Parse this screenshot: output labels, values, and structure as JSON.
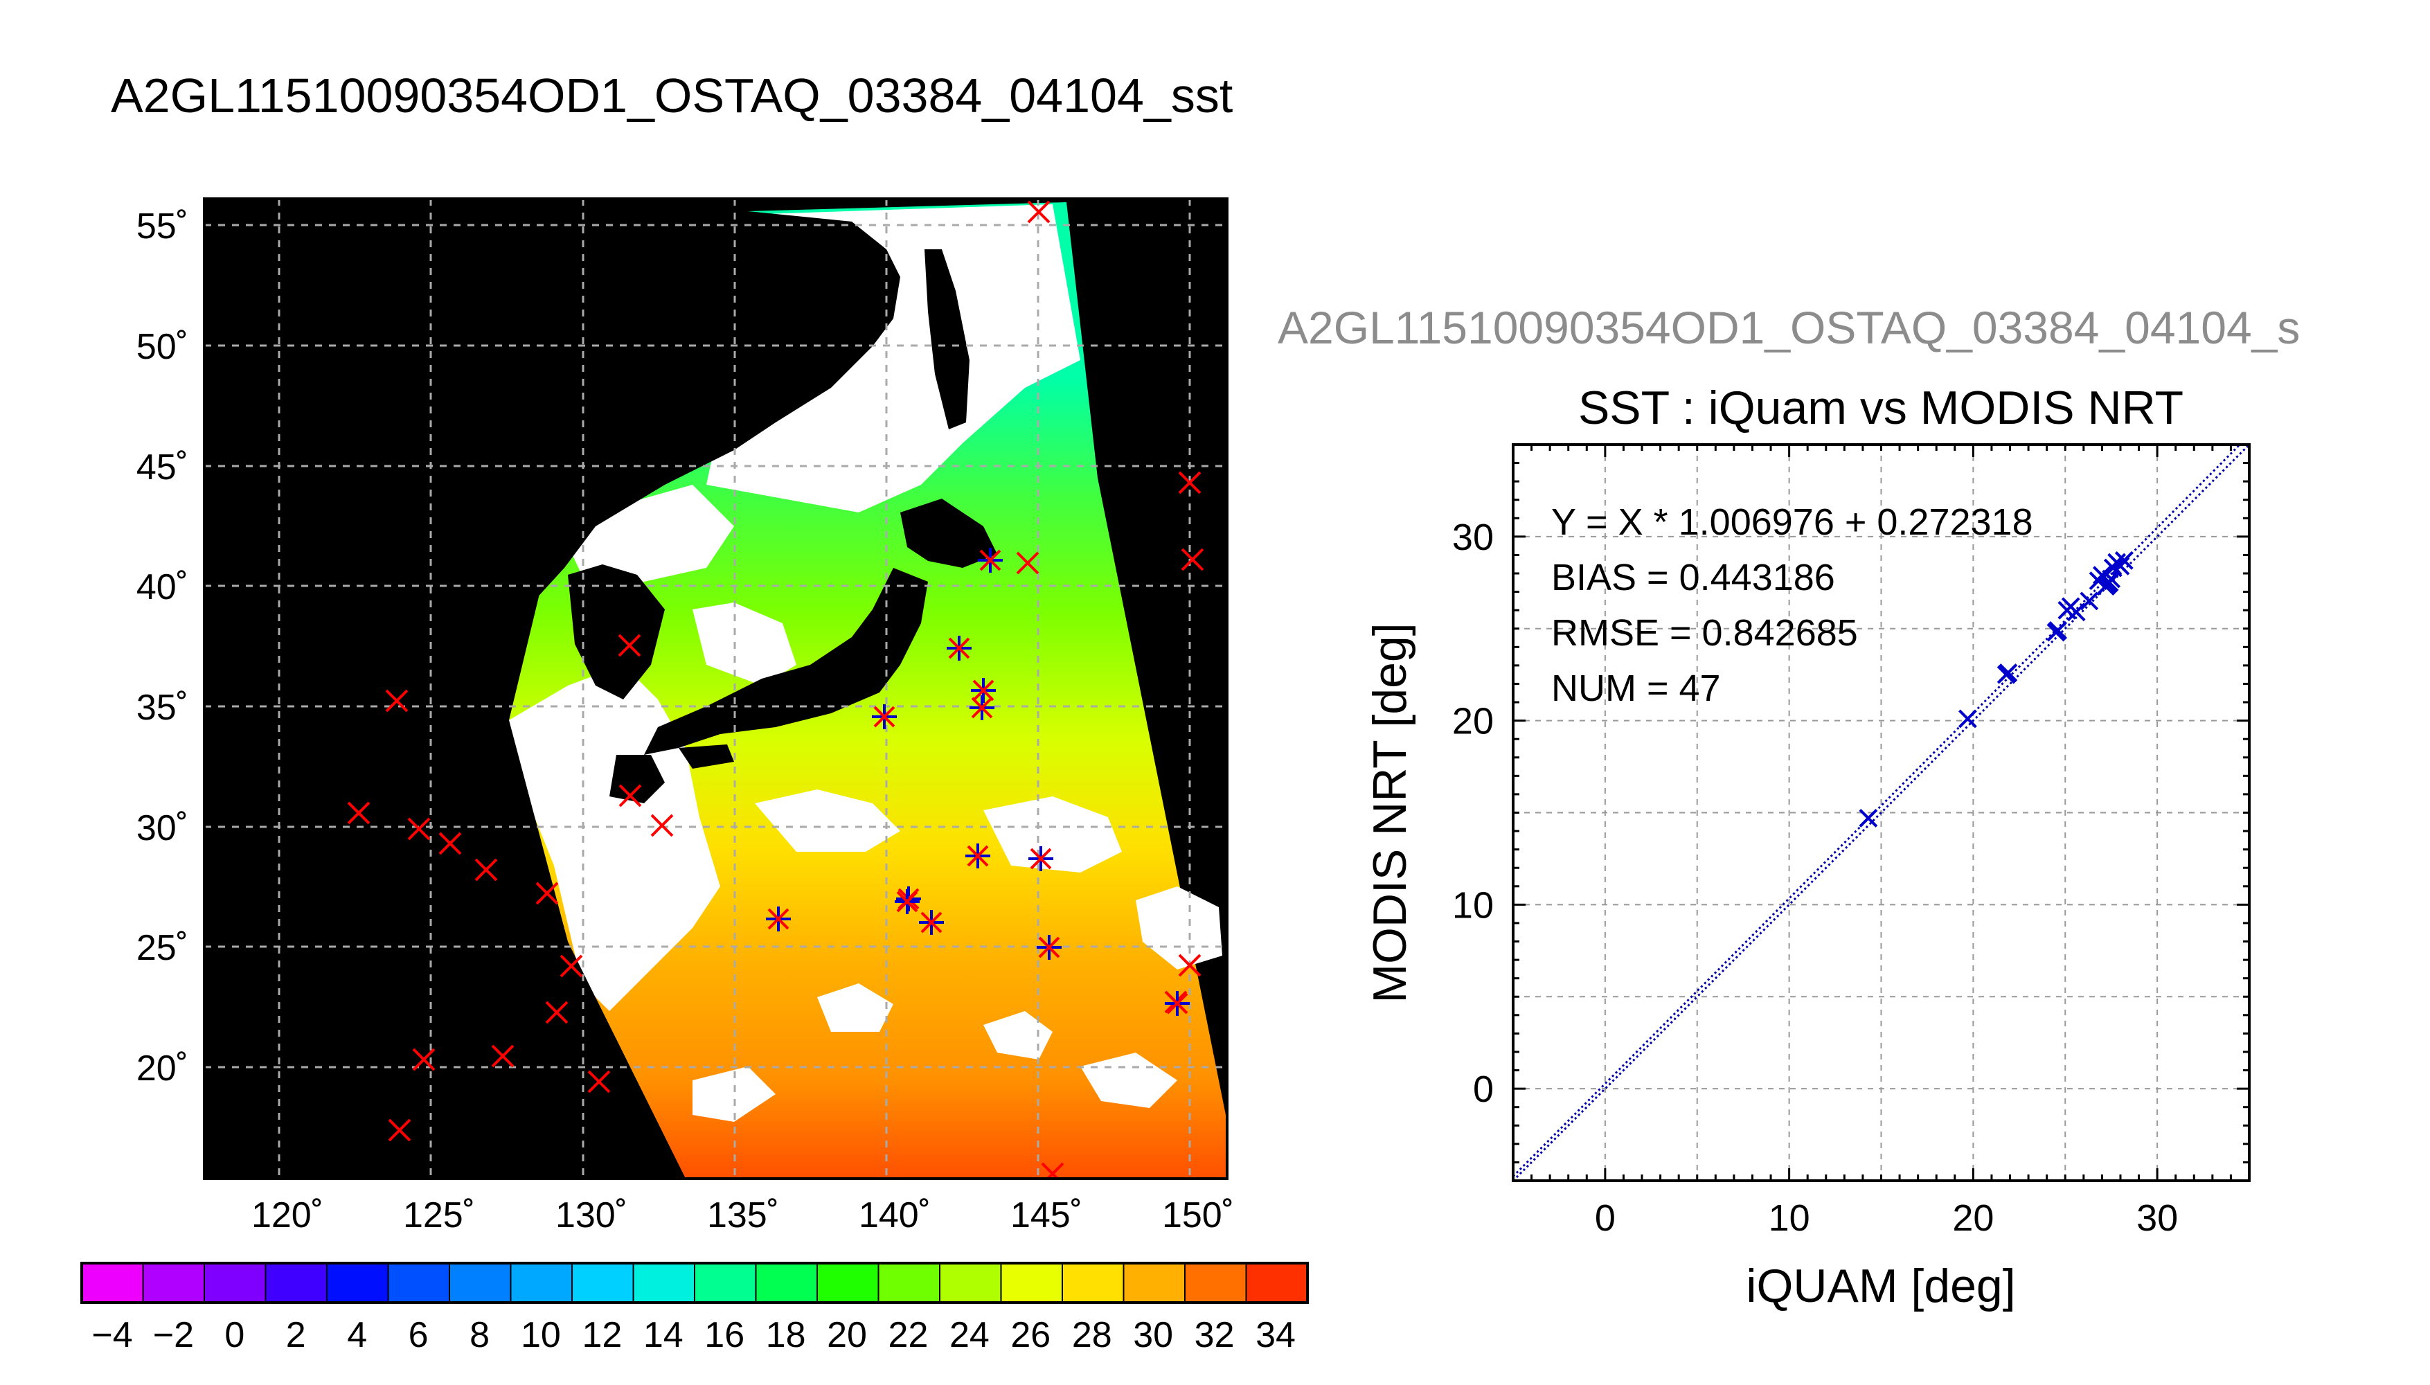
{
  "page_title": "A2GL11510090354OD1_OSTAQ_03384_04104_sst",
  "map": {
    "lat_ticks": [
      "55˚",
      "50˚",
      "45˚",
      "40˚",
      "35˚",
      "30˚",
      "25˚",
      "20˚"
    ],
    "lon_ticks": [
      "120˚",
      "125˚",
      "130˚",
      "135˚",
      "140˚",
      "145˚",
      "150˚"
    ],
    "colors": {
      "land_offswath": "#000000",
      "cloud": "#ffffff",
      "matchup_insitu": "#ff0000",
      "matchup_modis": "#0000cc"
    }
  },
  "colorbar": {
    "tick_labels": [
      "−4",
      "−2",
      "0",
      "2",
      "4",
      "6",
      "8",
      "10",
      "12",
      "14",
      "16",
      "18",
      "20",
      "22",
      "24",
      "26",
      "28",
      "30",
      "32",
      "34"
    ],
    "colors": [
      "#ee00ff",
      "#b000ff",
      "#8000ff",
      "#4000ff",
      "#0010ff",
      "#0050ff",
      "#0080ff",
      "#00a8ff",
      "#00d0ff",
      "#00f0e0",
      "#00ff90",
      "#00ff50",
      "#20ff00",
      "#70ff00",
      "#b0ff00",
      "#e8ff00",
      "#ffe000",
      "#ffb000",
      "#ff7000",
      "#ff3000"
    ]
  },
  "scatter_header": "A2GL11510090354OD1_OSTAQ_03384_04104_s",
  "chart_data": {
    "type": "scatter",
    "title": "SST : iQuam vs MODIS NRT",
    "xlabel": "iQUAM [deg]",
    "ylabel": "MODIS NRT [deg]",
    "xlim": [
      -5,
      35
    ],
    "ylim": [
      -5,
      35
    ],
    "x_ticks": [
      0,
      10,
      20,
      30
    ],
    "y_ticks": [
      0,
      10,
      20,
      30
    ],
    "grid": true,
    "stats": {
      "fit": "Y = X * 1.006976 + 0.272318",
      "bias": "BIAS = 0.443186",
      "rmse": "RMSE = 0.842685",
      "num": "NUM = 47"
    },
    "fit_line": {
      "slope": 1.006976,
      "intercept": 0.272318
    },
    "points": [
      {
        "x": 14.3,
        "y": 14.7
      },
      {
        "x": 19.7,
        "y": 20.1
      },
      {
        "x": 21.8,
        "y": 22.5
      },
      {
        "x": 21.9,
        "y": 22.6
      },
      {
        "x": 24.5,
        "y": 24.8
      },
      {
        "x": 24.6,
        "y": 24.9
      },
      {
        "x": 25.1,
        "y": 26.0
      },
      {
        "x": 25.3,
        "y": 26.2
      },
      {
        "x": 25.6,
        "y": 25.9
      },
      {
        "x": 26.3,
        "y": 26.5
      },
      {
        "x": 26.8,
        "y": 27.6
      },
      {
        "x": 27.0,
        "y": 27.9
      },
      {
        "x": 27.3,
        "y": 27.4
      },
      {
        "x": 27.5,
        "y": 27.7
      },
      {
        "x": 27.6,
        "y": 28.3
      },
      {
        "x": 27.8,
        "y": 28.6
      },
      {
        "x": 28.0,
        "y": 28.4
      },
      {
        "x": 28.2,
        "y": 28.7
      },
      {
        "x": 27.2,
        "y": 27.3
      },
      {
        "x": 27.4,
        "y": 27.5
      }
    ]
  }
}
